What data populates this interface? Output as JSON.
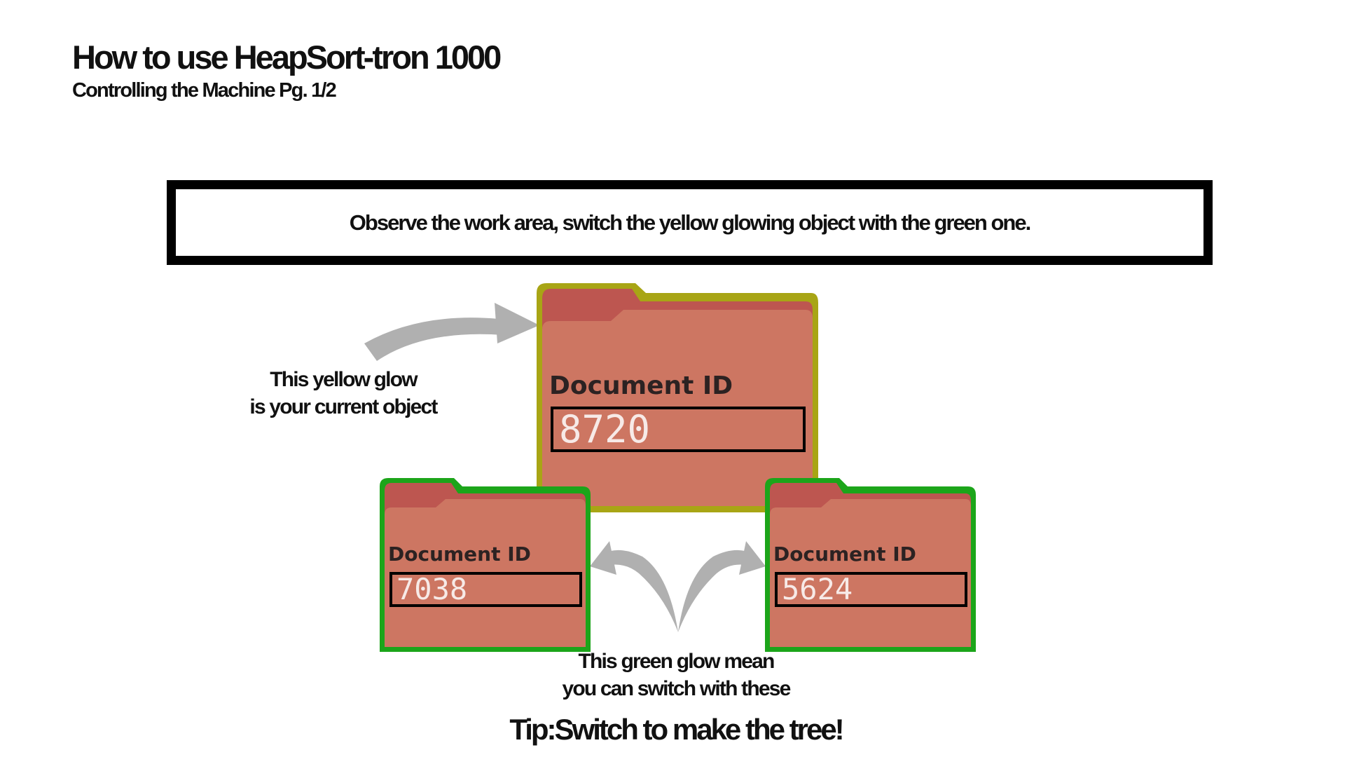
{
  "header": {
    "title": "How to use HeapSort-tron 1000",
    "subtitle": "Controlling the Machine Pg. 1/2"
  },
  "instruction": {
    "text": "Observe the work area, switch the yellow glowing object with the green one."
  },
  "callouts": {
    "yellow_glow": [
      "This yellow glow",
      "is your current object"
    ],
    "green_glow": [
      "This green glow mean",
      "you can switch with these"
    ]
  },
  "tip": "Tip:Switch to make the tree!",
  "folders": {
    "current": {
      "label": "Document ID",
      "id": "8720",
      "glow": "yellow"
    },
    "left_child": {
      "label": "Document ID",
      "id": "7038",
      "glow": "green"
    },
    "right_child": {
      "label": "Document ID",
      "id": "5624",
      "glow": "green"
    }
  },
  "colors": {
    "yellow_glow": "#a8a515",
    "green_glow": "#1ca51a",
    "folder_body": "#cd7662",
    "folder_tab": "#bd5650",
    "arrow": "#b0b0b0"
  },
  "icons": {
    "pointer_arrow": "curved-arrow-icon",
    "swap_arrows": "swap-arrows-icon"
  }
}
